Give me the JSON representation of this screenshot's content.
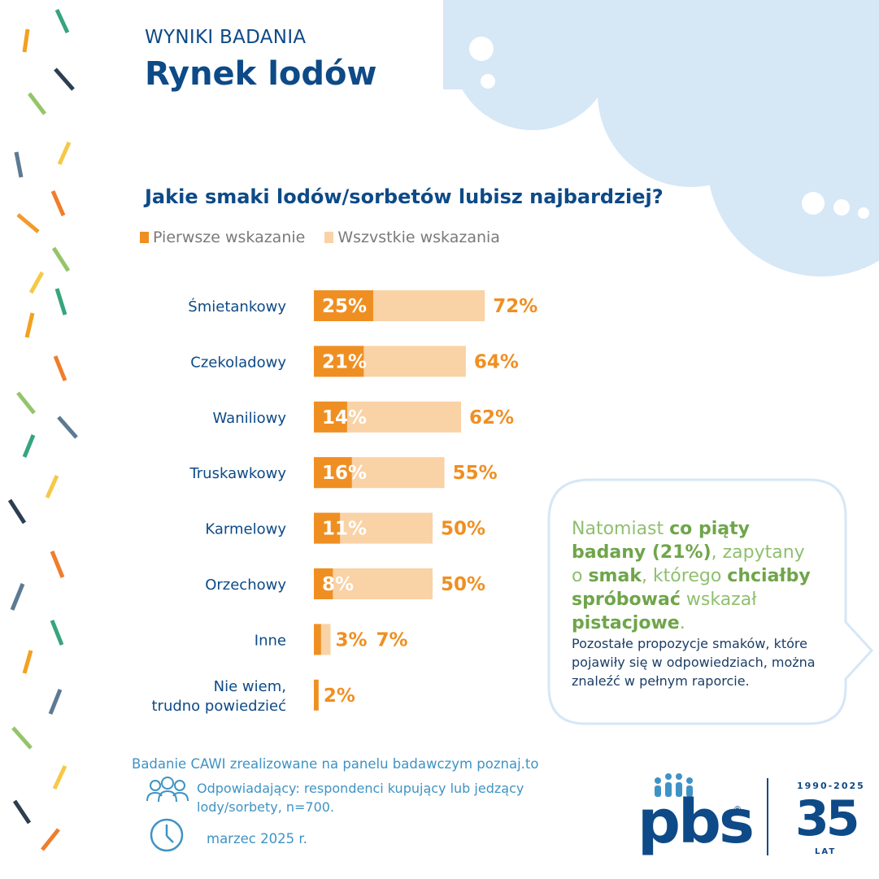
{
  "header": {
    "kicker": "WYNIKI BADANIA",
    "title": "Rynek lodów"
  },
  "colors": {
    "first": "#ef8f22",
    "all": "#f9d2a6",
    "navy": "#0d4a87",
    "green": "#8fbf6f",
    "cloud": "#d6e7f6"
  },
  "legend": {
    "first": "Pierwsze wskazanie",
    "all": "Wszvstkie wskazania"
  },
  "chart_data": {
    "type": "bar",
    "title": "Jakie smaki lodów/sorbetów lubisz najbardziej?",
    "categories": [
      "Śmietankowy",
      "Czekoladowy",
      "Waniliowy",
      "Truskawkowy",
      "Karmelowy",
      "Orzechowy",
      "Inne",
      "Nie wiem, trudno powiedzieć"
    ],
    "category_lines": [
      [
        "Śmietankowy"
      ],
      [
        "Czekoladowy"
      ],
      [
        "Waniliowy"
      ],
      [
        "Truskawkowy"
      ],
      [
        "Karmelowy"
      ],
      [
        "Orzechowy"
      ],
      [
        "Inne"
      ],
      [
        "Nie wiem,",
        "trudno powiedzieć"
      ]
    ],
    "series": [
      {
        "name": "Pierwsze wskazanie",
        "values": [
          25,
          21,
          14,
          16,
          11,
          8,
          3,
          2
        ],
        "labels": [
          "25%",
          "21%",
          "14%",
          "16%",
          "11%",
          "8%",
          "3%",
          "2%"
        ]
      },
      {
        "name": "Wszvstkie wskazania",
        "values": [
          72,
          64,
          62,
          55,
          50,
          50,
          7,
          null
        ],
        "labels": [
          "72%",
          "64%",
          "62%",
          "55%",
          "50%",
          "50%",
          "7%",
          ""
        ]
      }
    ],
    "unit": "%"
  },
  "bubble": {
    "p1": "Natomiast ",
    "b1": "co piąty badany (21%)",
    "p2": ", zapytany o ",
    "b2": "smak",
    "p3": ", którego ",
    "b3": "chciałby spróbować",
    "p4": " wskazał ",
    "b4": "pistacjowe",
    "p5": ".",
    "sub": "Pozostałe propozycje smaków, które pojawiły się w odpowiedziach, można znaleźć w pełnym raporcie."
  },
  "footer": {
    "survey": "Badanie CAWI zrealizowane na panelu badawczym poznaj.to",
    "respondents": "Odpowiadający: respondenci kupujący lub jedzący lody/sorbety, n=700.",
    "date": "marzec 2025 r."
  },
  "logo": {
    "brand": "pbs",
    "registered": "®",
    "years": "1990-2025",
    "number": "35",
    "lat": "LAT"
  },
  "icons": {
    "people": "people-icon",
    "clock": "clock-icon"
  }
}
